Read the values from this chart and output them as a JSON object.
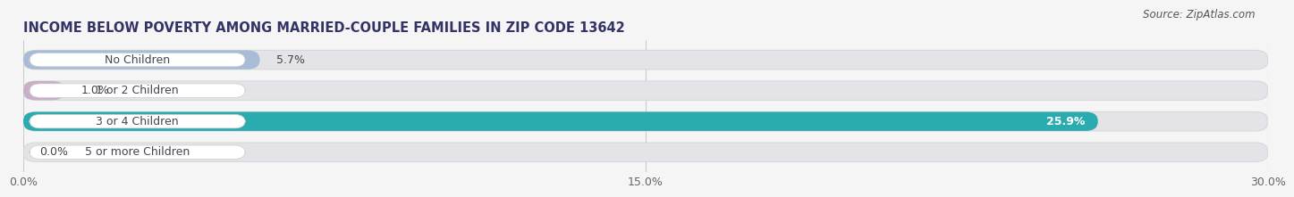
{
  "title": "INCOME BELOW POVERTY AMONG MARRIED-COUPLE FAMILIES IN ZIP CODE 13642",
  "source": "Source: ZipAtlas.com",
  "categories": [
    "No Children",
    "1 or 2 Children",
    "3 or 4 Children",
    "5 or more Children"
  ],
  "values": [
    5.7,
    1.0,
    25.9,
    0.0
  ],
  "bar_colors": [
    "#a8bcd8",
    "#c9aec8",
    "#2aabb0",
    "#b0b8e0"
  ],
  "label_colors": [
    "#444444",
    "#444444",
    "#ffffff",
    "#444444"
  ],
  "xlim": [
    0,
    30.0
  ],
  "xticks": [
    0.0,
    15.0,
    30.0
  ],
  "xtick_labels": [
    "0.0%",
    "15.0%",
    "30.0%"
  ],
  "bar_height": 0.62,
  "background_color": "#f5f5f5",
  "bar_bg_color": "#e4e4e8",
  "bar_border_color": "#d8d8dc",
  "title_fontsize": 10.5,
  "label_fontsize": 9,
  "value_fontsize": 9,
  "source_fontsize": 8.5
}
